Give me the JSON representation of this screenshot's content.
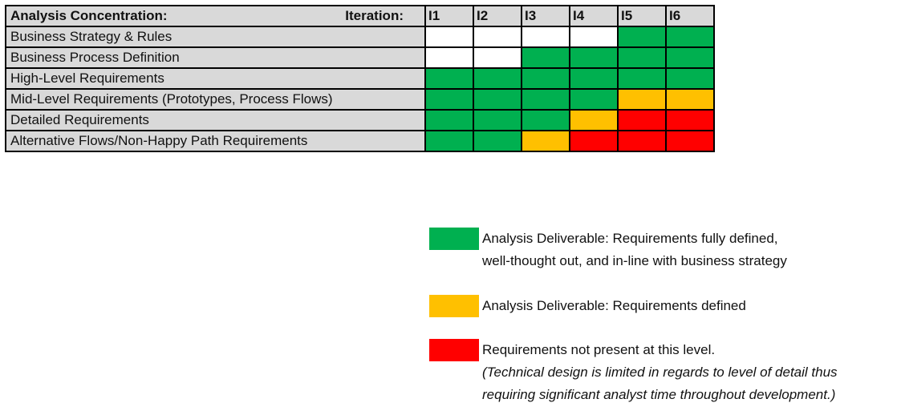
{
  "matrix": {
    "header_label": "Analysis Concentration:",
    "iteration_label": "Iteration:",
    "iterations": [
      "I1",
      "I2",
      "I3",
      "I4",
      "I5",
      "I6"
    ],
    "rows": [
      {
        "label": "Business Strategy & Rules",
        "status": [
          "none",
          "none",
          "none",
          "none",
          "full",
          "full"
        ]
      },
      {
        "label": "Business Process Definition",
        "status": [
          "none",
          "none",
          "full",
          "full",
          "full",
          "full"
        ]
      },
      {
        "label": "High-Level Requirements",
        "status": [
          "full",
          "full",
          "full",
          "full",
          "full",
          "full"
        ]
      },
      {
        "label": "Mid-Level Requirements (Prototypes, Process Flows)",
        "status": [
          "full",
          "full",
          "full",
          "full",
          "defined",
          "defined"
        ]
      },
      {
        "label": "Detailed Requirements",
        "status": [
          "full",
          "full",
          "full",
          "defined",
          "absent",
          "absent"
        ]
      },
      {
        "label": "Alternative Flows/Non-Happy Path Requirements",
        "status": [
          "full",
          "full",
          "defined",
          "absent",
          "absent",
          "absent"
        ]
      }
    ]
  },
  "colors": {
    "full": "#00b050",
    "defined": "#ffc000",
    "absent": "#ff0000",
    "none": "#ffffff"
  },
  "legend": {
    "full_line1": "Analysis Deliverable: Requirements fully defined,",
    "full_line2": "well-thought out, and in-line with business strategy",
    "defined_line1": "Analysis Deliverable: Requirements defined",
    "absent_line1": "Requirements not present at this level.",
    "absent_line2": "(Technical design is limited in regards to level of detail thus",
    "absent_line3": "requiring significant analyst time throughout development.)"
  }
}
